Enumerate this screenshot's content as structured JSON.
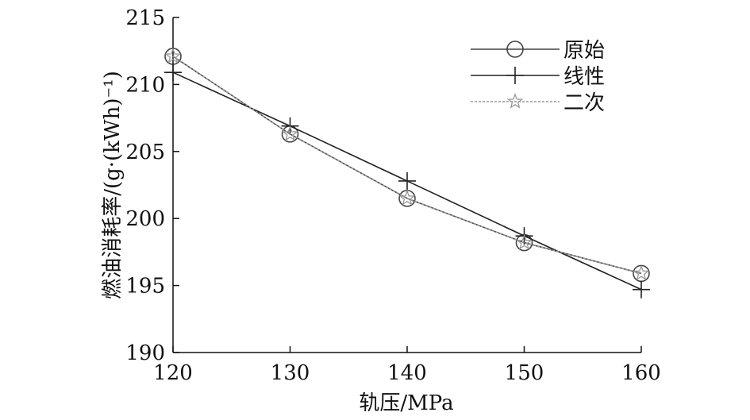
{
  "chart_data": {
    "type": "line",
    "title": "",
    "xlabel": "轨压/MPa",
    "ylabel": "燃油消耗率/(g·(kWh)⁻¹)",
    "x": [
      120,
      130,
      140,
      150,
      160
    ],
    "xticks": [
      120,
      130,
      140,
      150,
      160
    ],
    "yticks": [
      190,
      195,
      200,
      205,
      210,
      215
    ],
    "xlim": [
      120,
      160
    ],
    "ylim": [
      190,
      215
    ],
    "grid": false,
    "legend_position": "top-right",
    "series": [
      {
        "name": "原始",
        "marker": "circle",
        "color": "#444444",
        "dash": "solid",
        "values": [
          212.1,
          206.3,
          201.5,
          198.2,
          195.9
        ]
      },
      {
        "name": "线性",
        "marker": "plus",
        "color": "#222222",
        "dash": "solid",
        "values": [
          210.9,
          206.9,
          202.8,
          198.7,
          194.7
        ]
      },
      {
        "name": "二次",
        "marker": "star",
        "color": "#999999",
        "dash": "dotted",
        "values": [
          212.1,
          206.3,
          201.5,
          198.2,
          195.9
        ]
      }
    ]
  }
}
